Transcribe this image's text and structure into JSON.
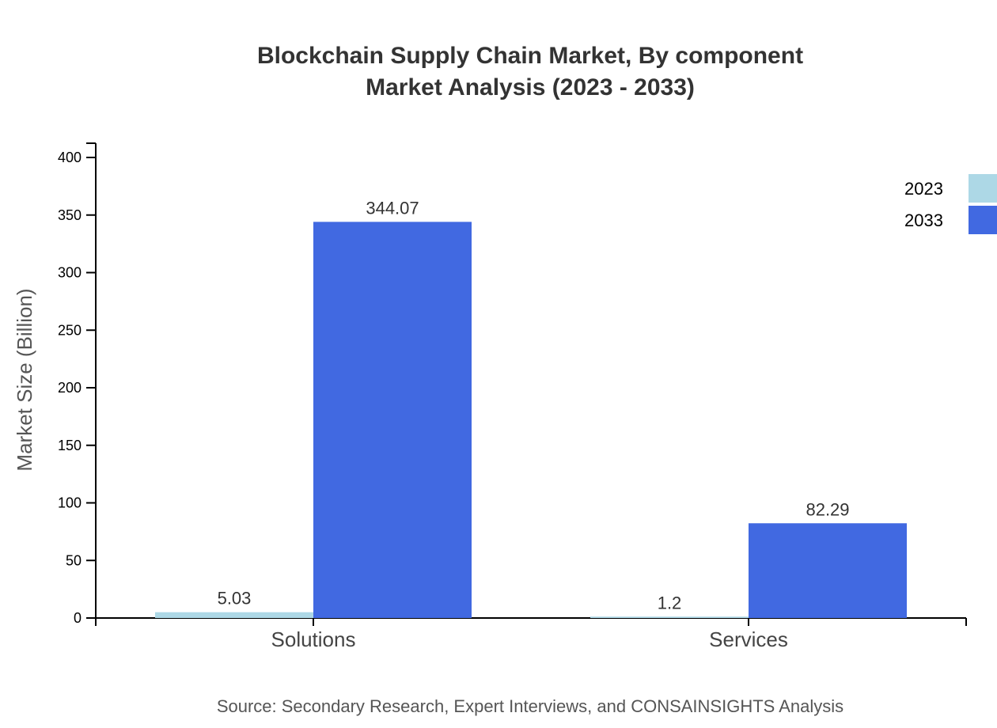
{
  "chart_data": {
    "type": "bar",
    "title": "Blockchain Supply Chain Market, By component",
    "subtitle": "Market Analysis (2023 - 2033)",
    "xlabel": "",
    "ylabel": "Market Size (Billion)",
    "categories": [
      "Solutions",
      "Services"
    ],
    "series": [
      {
        "name": "2023",
        "values": [
          5.03,
          1.2
        ],
        "color": "#add8e6"
      },
      {
        "name": "2033",
        "values": [
          344.07,
          82.29
        ],
        "color": "#4169e1"
      }
    ],
    "ylim": [
      0,
      412
    ],
    "yticks": [
      0,
      50,
      100,
      150,
      200,
      250,
      300,
      350,
      400
    ],
    "grid": false,
    "legend": "top-right",
    "source": "Source: Secondary Research, Expert Interviews, and CONSAINSIGHTS Analysis"
  }
}
